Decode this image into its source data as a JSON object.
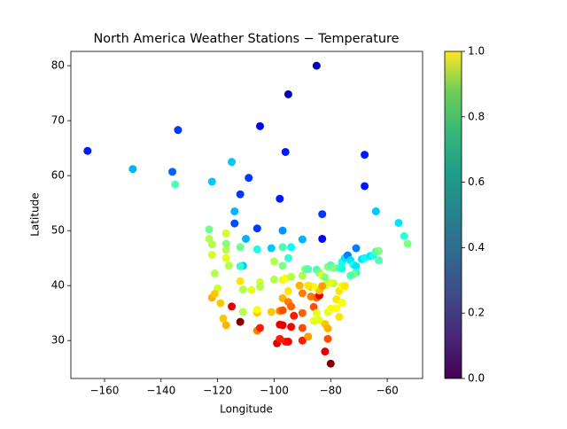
{
  "chart_data": {
    "type": "scatter",
    "title": "North America Weather Stations - Temperature",
    "x_label": "Longitude",
    "y_label": "Latitude",
    "xlim": [
      -171.9,
      -47.5
    ],
    "ylim": [
      23.1,
      82.6
    ],
    "xticks": [
      -160,
      -140,
      -120,
      -100,
      -80,
      -60
    ],
    "yticks": [
      30,
      40,
      50,
      60,
      70,
      80
    ],
    "colormap": "jet",
    "colorbar_colormap": "viridis",
    "clim": [
      0,
      1
    ],
    "colorbar_ticks": [
      {
        "value": 0,
        "label": "0.0"
      },
      {
        "value": 0.2,
        "label": "0.2"
      },
      {
        "value": 0.4,
        "label": "0.4"
      },
      {
        "value": 0.6,
        "label": "0.6"
      },
      {
        "value": 0.8,
        "label": "0.8"
      },
      {
        "value": 1,
        "label": "1.0"
      }
    ],
    "series": [
      {
        "x": [
          -85,
          -95,
          -105,
          -68,
          -166,
          -134,
          -150,
          -136,
          -135,
          -96,
          -109,
          -68,
          -115,
          -122,
          -112,
          -98,
          -83,
          -64,
          -114,
          -114,
          -106,
          -97,
          -83,
          -56,
          -54,
          -52.8,
          -123,
          -123,
          -122,
          -117,
          -117,
          -117,
          -110,
          -112,
          -106,
          -101,
          -97,
          -94,
          -90,
          -95,
          -100,
          -97,
          -111,
          -112,
          -116,
          -117,
          -122,
          -121,
          -120,
          -112,
          -111,
          -108,
          -105,
          -105,
          -100,
          -97,
          -96,
          -94,
          -90,
          -89,
          -88,
          -85,
          -84,
          -83,
          -82,
          -81,
          -80,
          -79,
          -77,
          -76,
          -76,
          -75,
          -74,
          -73,
          -72,
          -71,
          -71,
          -72,
          -73,
          -71,
          -69,
          -68,
          -66,
          -65,
          -64,
          -63,
          -63,
          -122,
          -121,
          -119,
          -118,
          -117,
          -115,
          -112,
          -111,
          -106,
          -106,
          -106,
          -105,
          -101,
          -98,
          -97,
          -97,
          -95,
          -95,
          -94,
          -93,
          -94,
          -97,
          -98,
          -99,
          -98,
          -96,
          -90,
          -90,
          -90,
          -90,
          -91,
          -87,
          -87,
          -86,
          -85,
          -84,
          -85,
          -86,
          -84,
          -82,
          -81,
          -80,
          -82,
          -81,
          -81,
          -80,
          -78,
          -77,
          -78,
          -76,
          -77,
          -76,
          -79,
          -80,
          -82,
          -84,
          -86,
          -83,
          -88,
          -75,
          -95,
          -88
        ],
        "y": [
          80,
          74.8,
          69,
          63.8,
          64.5,
          68.3,
          61.2,
          60.7,
          58.4,
          64.3,
          59.6,
          58.1,
          62.5,
          58.9,
          56.6,
          55.8,
          53,
          53.5,
          53.5,
          51.3,
          50.4,
          50,
          48.5,
          51.4,
          49,
          47.6,
          50.2,
          48.5,
          47.5,
          49.5,
          47.6,
          46.5,
          48.5,
          47,
          46.6,
          46.8,
          47,
          47,
          48.4,
          45,
          44.4,
          43.6,
          43.6,
          43.5,
          43.6,
          45,
          45.6,
          42.2,
          39.5,
          40.8,
          39.3,
          39.2,
          40.6,
          39.8,
          41.1,
          41,
          41.3,
          41.6,
          41.8,
          43,
          43,
          42.9,
          42.3,
          41.8,
          41.5,
          43.4,
          43.7,
          43.2,
          43.2,
          43.1,
          44.3,
          45,
          45.5,
          44.6,
          43.8,
          43.5,
          42.4,
          42,
          41.8,
          46.8,
          44.8,
          45,
          45.4,
          45.5,
          46.2,
          46.3,
          44.6,
          37.8,
          38.5,
          36.8,
          34,
          32.8,
          36.2,
          33.4,
          35.2,
          35.1,
          35.6,
          31.8,
          32.3,
          35.2,
          35.4,
          35.5,
          37.7,
          39,
          37,
          36.2,
          34.5,
          32.5,
          32.8,
          32.9,
          29.5,
          30.3,
          29.8,
          30,
          32.3,
          35,
          38.6,
          40,
          39.8,
          38,
          36.1,
          37.8,
          38.2,
          35,
          33.6,
          33.7,
          28,
          30.3,
          25.8,
          33,
          32.2,
          35.2,
          35.8,
          35.9,
          34.3,
          37.5,
          36.9,
          39,
          39.9,
          40.4,
          40.5,
          40,
          39.1,
          39.8,
          39.9,
          40,
          39.9,
          29.8,
          30.7
        ],
        "c": [
          0.05,
          0.05,
          0.12,
          0.15,
          0.15,
          0.18,
          0.3,
          0.22,
          0.45,
          0.15,
          0.18,
          0.15,
          0.32,
          0.32,
          0.18,
          0.15,
          0.18,
          0.32,
          0.3,
          0.2,
          0.18,
          0.27,
          0.12,
          0.35,
          0.42,
          0.5,
          0.48,
          0.55,
          0.55,
          0.58,
          0.5,
          0.55,
          0.3,
          0.48,
          0.4,
          0.32,
          0.45,
          0.38,
          0.3,
          0.42,
          0.55,
          0.5,
          0.32,
          0.42,
          0.55,
          0.6,
          0.58,
          0.55,
          0.58,
          0.65,
          0.55,
          0.6,
          0.58,
          0.55,
          0.55,
          0.6,
          0.62,
          0.55,
          0.55,
          0.5,
          0.45,
          0.45,
          0.5,
          0.6,
          0.5,
          0.5,
          0.45,
          0.5,
          0.45,
          0.4,
          0.4,
          0.35,
          0.25,
          0.35,
          0.4,
          0.35,
          0.42,
          0.5,
          0.45,
          0.25,
          0.35,
          0.38,
          0.35,
          0.4,
          0.45,
          0.5,
          0.45,
          0.7,
          0.68,
          0.68,
          0.68,
          0.7,
          0.9,
          1.0,
          0.55,
          0.68,
          0.62,
          0.75,
          0.85,
          0.68,
          0.75,
          0.8,
          0.7,
          0.65,
          0.75,
          0.78,
          0.85,
          0.88,
          0.9,
          0.9,
          0.9,
          0.85,
          0.85,
          0.85,
          0.8,
          0.78,
          0.75,
          0.7,
          0.7,
          0.75,
          0.8,
          0.78,
          0.9,
          0.6,
          0.6,
          0.6,
          0.9,
          0.8,
          1.0,
          0.68,
          0.7,
          0.6,
          0.62,
          0.62,
          0.65,
          0.65,
          0.62,
          0.65,
          0.62,
          0.55,
          0.6,
          0.58,
          0.68,
          0.62,
          0.72,
          0.65,
          0.65,
          0.88,
          0.72
        ]
      }
    ]
  }
}
